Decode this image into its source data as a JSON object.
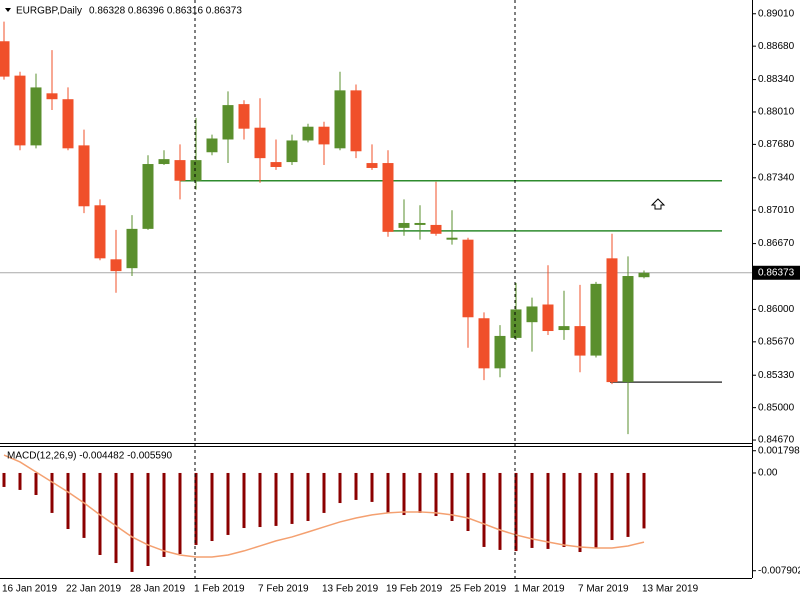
{
  "chart_data": [
    {
      "type": "candlestick",
      "title": "EURGBP,Daily",
      "subtitle": "0.86328 0.86396 0.86316 0.86373",
      "categories": [
        "16 Jan 2019",
        null,
        null,
        null,
        "22 Jan 2019",
        null,
        null,
        null,
        "28 Jan 2019",
        null,
        null,
        null,
        "1 Feb 2019",
        null,
        null,
        null,
        "7 Feb 2019",
        null,
        null,
        null,
        "13 Feb 2019",
        null,
        null,
        null,
        "19 Feb 2019",
        null,
        null,
        null,
        "25 Feb 2019",
        null,
        null,
        null,
        "1 Mar 2019",
        null,
        null,
        null,
        "7 Mar 2019",
        null,
        null,
        null,
        "13 Mar 2019"
      ],
      "open": [
        0.8873,
        0.8838,
        0.8767,
        0.882,
        0.8814,
        0.8767,
        0.8706,
        0.8651,
        0.8642,
        0.8682,
        0.8748,
        0.8752,
        0.8731,
        0.876,
        0.8773,
        0.8809,
        0.8785,
        0.875,
        0.875,
        0.8772,
        0.8786,
        0.8764,
        0.8823,
        0.8749,
        0.8749,
        0.8683,
        0.8686,
        0.8686,
        0.8671,
        0.8671,
        0.8591,
        0.854,
        0.8571,
        0.8587,
        0.8605,
        0.8579,
        0.8583,
        0.8553,
        0.8652,
        0.8526,
        0.86328
      ],
      "high": [
        0.8893,
        0.8842,
        0.884,
        0.8864,
        0.8826,
        0.8783,
        0.8712,
        0.8681,
        0.8696,
        0.8757,
        0.8762,
        0.8768,
        0.8795,
        0.8778,
        0.8822,
        0.8813,
        0.8815,
        0.8773,
        0.8778,
        0.8789,
        0.8791,
        0.8842,
        0.8829,
        0.8768,
        0.8762,
        0.8712,
        0.8706,
        0.873,
        0.8701,
        0.8673,
        0.8597,
        0.8584,
        0.8627,
        0.8612,
        0.8645,
        0.8619,
        0.8625,
        0.8628,
        0.8677,
        0.8654,
        0.86396
      ],
      "low": [
        0.8834,
        0.8762,
        0.8764,
        0.8803,
        0.8762,
        0.8698,
        0.865,
        0.8617,
        0.8634,
        0.8681,
        0.8747,
        0.8712,
        0.8722,
        0.8757,
        0.8749,
        0.8773,
        0.8729,
        0.8742,
        0.8747,
        0.877,
        0.8747,
        0.8762,
        0.8754,
        0.8742,
        0.8674,
        0.8675,
        0.8671,
        0.8675,
        0.8666,
        0.8561,
        0.8528,
        0.8531,
        0.8569,
        0.8557,
        0.8574,
        0.8569,
        0.8536,
        0.8551,
        0.8524,
        0.8473,
        0.86316
      ],
      "close": [
        0.8837,
        0.8767,
        0.8826,
        0.8814,
        0.8764,
        0.8705,
        0.8652,
        0.8639,
        0.8682,
        0.8748,
        0.8753,
        0.8731,
        0.8752,
        0.8774,
        0.8808,
        0.8784,
        0.8754,
        0.8745,
        0.8772,
        0.8786,
        0.8768,
        0.8823,
        0.8761,
        0.8744,
        0.8679,
        0.8688,
        0.8688,
        0.8677,
        0.8673,
        0.8592,
        0.854,
        0.8573,
        0.86,
        0.8603,
        0.8578,
        0.8583,
        0.8553,
        0.8626,
        0.8526,
        0.8634,
        0.86373
      ],
      "up_color": "#5a8f2d",
      "down_color": "#f0502a",
      "ylim": [
        0.8464,
        0.8915
      ],
      "yticks": [
        {
          "value": 0.8901,
          "label": "0.89010"
        },
        {
          "value": 0.8868,
          "label": "0.88680"
        },
        {
          "value": 0.8834,
          "label": "0.88340"
        },
        {
          "value": 0.8801,
          "label": "0.88010"
        },
        {
          "value": 0.8768,
          "label": "0.87680"
        },
        {
          "value": 0.8734,
          "label": "0.87340"
        },
        {
          "value": 0.8701,
          "label": "0.87010"
        },
        {
          "value": 0.8667,
          "label": "0.86670"
        },
        {
          "value": 0.86,
          "label": "0.86000"
        },
        {
          "value": 0.8567,
          "label": "0.85670"
        },
        {
          "value": 0.8533,
          "label": "0.85330"
        },
        {
          "value": 0.85,
          "label": "0.85000"
        },
        {
          "value": 0.8467,
          "label": "0.84670"
        }
      ],
      "last_price": {
        "value": 0.86373,
        "label": "0.86373"
      },
      "levels": [
        {
          "value": 0.8731,
          "color": "#2e8b2e"
        },
        {
          "value": 0.868,
          "color": "#2e8b2e"
        },
        {
          "value": 0.8526,
          "color": "#404040"
        }
      ]
    },
    {
      "type": "macd",
      "title": "MACD(12,26,9) -0.004482 -0.005590",
      "histogram": {
        "color": "#8b0000",
        "values": [
          -0.00113,
          -0.00137,
          -0.00178,
          -0.00323,
          -0.00453,
          -0.00525,
          -0.00663,
          -0.00728,
          -0.008,
          -0.00752,
          -0.00679,
          -0.00655,
          -0.00582,
          -0.0055,
          -0.00501,
          -0.00445,
          -0.00437,
          -0.00428,
          -0.00412,
          -0.00388,
          -0.00323,
          -0.00243,
          -0.00218,
          -0.00234,
          -0.00323,
          -0.0034,
          -0.00323,
          -0.00348,
          -0.00388,
          -0.00469,
          -0.00598,
          -0.00622,
          -0.00631,
          -0.00606,
          -0.00614,
          -0.00598,
          -0.00639,
          -0.00606,
          -0.00542,
          -0.00517,
          -0.004482
        ]
      },
      "signal": {
        "color": "#f4a070",
        "values": [
          0.00145,
          0.00089,
          8e-05,
          -0.00073,
          -0.00154,
          -0.00242,
          -0.00339,
          -0.00428,
          -0.00517,
          -0.00582,
          -0.0063,
          -0.00663,
          -0.00679,
          -0.00679,
          -0.00663,
          -0.0063,
          -0.0059,
          -0.00549,
          -0.00517,
          -0.00477,
          -0.00436,
          -0.00396,
          -0.00364,
          -0.00339,
          -0.00323,
          -0.00315,
          -0.00315,
          -0.00323,
          -0.00339,
          -0.00364,
          -0.00412,
          -0.00461,
          -0.00501,
          -0.00533,
          -0.00558,
          -0.00582,
          -0.00598,
          -0.00606,
          -0.00606,
          -0.0059,
          -0.00559
        ]
      },
      "ylim": [
        -0.00849,
        0.00218
      ],
      "yticks": [
        0.001798,
        {
          "value": 0,
          "label": "0.00"
        },
        -0.007902
      ]
    }
  ]
}
